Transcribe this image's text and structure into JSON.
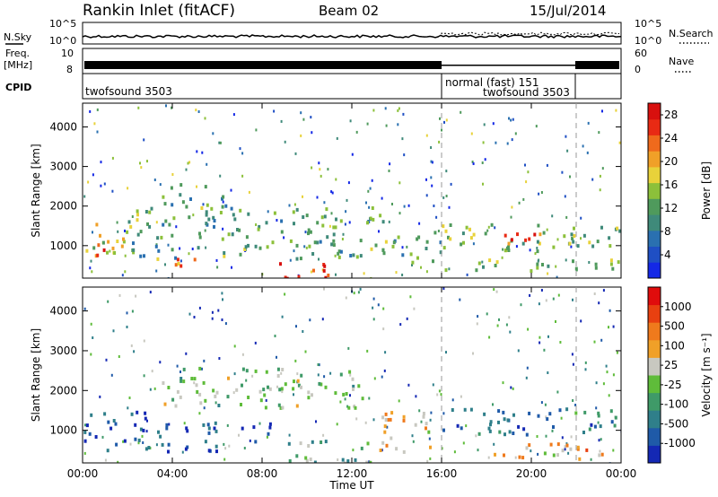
{
  "header": {
    "site": "Rankin Inlet (fitACF)",
    "beam": "Beam 02",
    "date": "15/Jul/2014"
  },
  "strip_labels": {
    "nsky": "N.Sky",
    "freq_top": "Freq.",
    "freq_unit": "[MHz]",
    "cpid": "CPID",
    "nsearch": "N.Search",
    "nave": "Nave",
    "nsky_hi": "10^5",
    "nsky_lo": "10^0",
    "nsearch_hi": "10^5",
    "nsearch_lo": "10^0",
    "freq_hi": "10",
    "freq_lo": "8",
    "nave_hi": "60",
    "nave_lo": "0"
  },
  "cpid_segments": [
    {
      "name": "twofsound 3503",
      "start": 0,
      "end": 16
    },
    {
      "name": "normal (fast) 151",
      "start": 16,
      "end": 22
    },
    {
      "name": "twofsound 3503",
      "start": 16,
      "end": 22
    }
  ],
  "chart_data": [
    {
      "type": "heatmap",
      "panel": "power",
      "xlabel": "",
      "ylabel": "Slant Range [km]",
      "xlim": [
        0,
        24
      ],
      "ylim": [
        180,
        4600
      ],
      "yticks": [
        "1000",
        "2000",
        "3000",
        "4000"
      ],
      "colorbar": {
        "label": "Power [dB]",
        "ticks": [
          "4",
          "8",
          "12",
          "16",
          "20",
          "24",
          "28"
        ],
        "range": [
          0,
          30
        ],
        "colors": [
          "#1428e6",
          "#1f4fc4",
          "#2a70b0",
          "#3f8a7a",
          "#4f9a5c",
          "#8cc03a",
          "#e8d23a",
          "#f0a028",
          "#ef6a1c",
          "#e82a14",
          "#d8100e"
        ]
      },
      "regions": [
        {
          "t0": 0.0,
          "t1": 2.0,
          "r0": 800,
          "r1": 1600,
          "level": 0.55
        },
        {
          "t0": 0.0,
          "t1": 1.5,
          "r0": 700,
          "r1": 1200,
          "level": 0.85
        },
        {
          "t0": 3.0,
          "t1": 6.0,
          "r0": 500,
          "r1": 700,
          "level": 0.75
        },
        {
          "t0": 8.0,
          "t1": 11.0,
          "r0": 200,
          "r1": 600,
          "level": 0.92
        },
        {
          "t0": 2.0,
          "t1": 14.0,
          "r0": 700,
          "r1": 2000,
          "level": 0.4
        },
        {
          "t0": 3.5,
          "t1": 6.5,
          "r0": 2000,
          "r1": 2600,
          "level": 0.35
        },
        {
          "t0": 14.0,
          "t1": 16.0,
          "r0": 600,
          "r1": 1400,
          "level": 0.35
        },
        {
          "t0": 16.0,
          "t1": 24.0,
          "r0": 900,
          "r1": 1600,
          "level": 0.45
        },
        {
          "t0": 16.0,
          "t1": 24.0,
          "r0": 400,
          "r1": 700,
          "level": 0.45
        },
        {
          "t0": 18.5,
          "t1": 21.0,
          "r0": 1000,
          "r1": 1400,
          "level": 0.8
        }
      ]
    },
    {
      "type": "heatmap",
      "panel": "velocity",
      "xlabel": "Time UT",
      "ylabel": "Slant Range [km]",
      "xlim": [
        0,
        24
      ],
      "ylim": [
        180,
        4600
      ],
      "xticks": [
        "00:00",
        "04:00",
        "08:00",
        "12:00",
        "16:00",
        "20:00",
        "00:00"
      ],
      "yticks": [
        "1000",
        "2000",
        "3000",
        "4000"
      ],
      "colorbar": {
        "label": "Velocity [m s⁻¹]",
        "ticks": [
          "1000",
          "500",
          "100",
          "25",
          "-25",
          "-100",
          "-500",
          "-1000"
        ],
        "colors": [
          "#1428b4",
          "#1f5aa8",
          "#2f7f8a",
          "#3f9a68",
          "#5fbc3a",
          "#c8c8c0",
          "#f0a028",
          "#ef7a1c",
          "#e84010",
          "#e00c0c"
        ]
      },
      "regions": [
        {
          "t0": 0.0,
          "t1": 3.0,
          "r0": 500,
          "r1": 1500,
          "level": 0.15
        },
        {
          "t0": 3.0,
          "t1": 6.0,
          "r0": 500,
          "r1": 1400,
          "level": 0.1
        },
        {
          "t0": 7.0,
          "t1": 8.5,
          "r0": 700,
          "r1": 1200,
          "level": 0.05
        },
        {
          "t0": 3.5,
          "t1": 12.5,
          "r0": 1600,
          "r1": 2600,
          "level": 0.45
        },
        {
          "t0": 9.0,
          "t1": 13.0,
          "r0": 200,
          "r1": 800,
          "level": 0.38
        },
        {
          "t0": 13.0,
          "t1": 15.5,
          "r0": 400,
          "r1": 1500,
          "level": 0.65
        },
        {
          "t0": 16.0,
          "t1": 24.0,
          "r0": 900,
          "r1": 1600,
          "level": 0.25
        },
        {
          "t0": 18.0,
          "t1": 24.0,
          "r0": 300,
          "r1": 700,
          "level": 0.65
        }
      ]
    }
  ]
}
